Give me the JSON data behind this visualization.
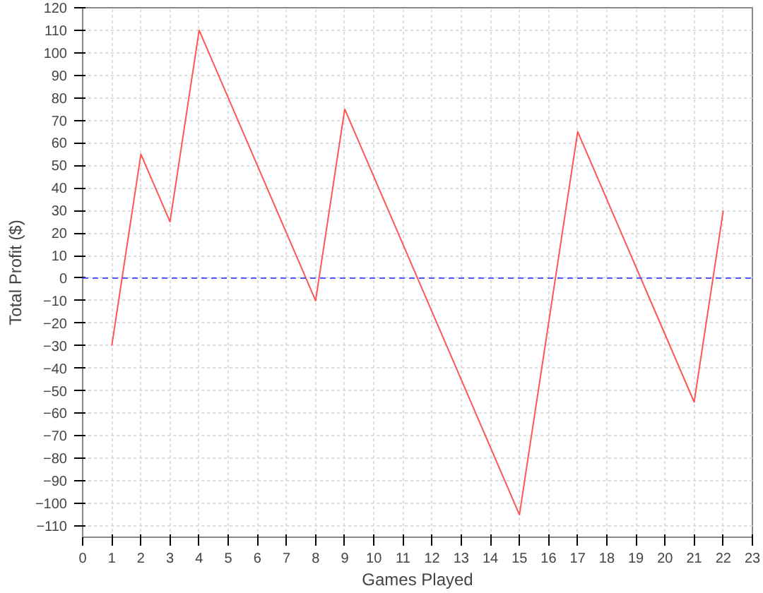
{
  "chart_data": {
    "type": "line",
    "xlabel": "Games Played",
    "ylabel": "Total Profit ($)",
    "x": [
      1,
      2,
      3,
      4,
      5,
      6,
      7,
      8,
      9,
      10,
      11,
      12,
      13,
      14,
      15,
      16,
      17,
      18,
      19,
      20,
      21,
      22
    ],
    "series": [
      {
        "color": "#ff5555",
        "values": [
          -30,
          55,
          25,
          110,
          80,
          50,
          20,
          -10,
          75,
          45,
          15,
          -15,
          -45,
          -75,
          -105,
          -20,
          65,
          35,
          5,
          -25,
          -55,
          30
        ]
      }
    ],
    "xlim": [
      0,
      23
    ],
    "xticks": [
      0,
      1,
      2,
      3,
      4,
      5,
      6,
      7,
      8,
      9,
      10,
      11,
      12,
      13,
      14,
      15,
      16,
      17,
      18,
      19,
      20,
      21,
      22,
      23
    ],
    "ylim": [
      -115,
      120
    ],
    "yticks": [
      -110,
      -100,
      -90,
      -80,
      -70,
      -60,
      -50,
      -40,
      -30,
      -20,
      -10,
      0,
      10,
      20,
      30,
      40,
      50,
      60,
      70,
      80,
      90,
      100,
      110,
      120
    ],
    "grid": true,
    "marker": "none",
    "line_style": "solid",
    "ref_lines": [
      {
        "axis": "y",
        "value": 0,
        "color": "#5555ff",
        "line_style": "dashed"
      }
    ]
  }
}
